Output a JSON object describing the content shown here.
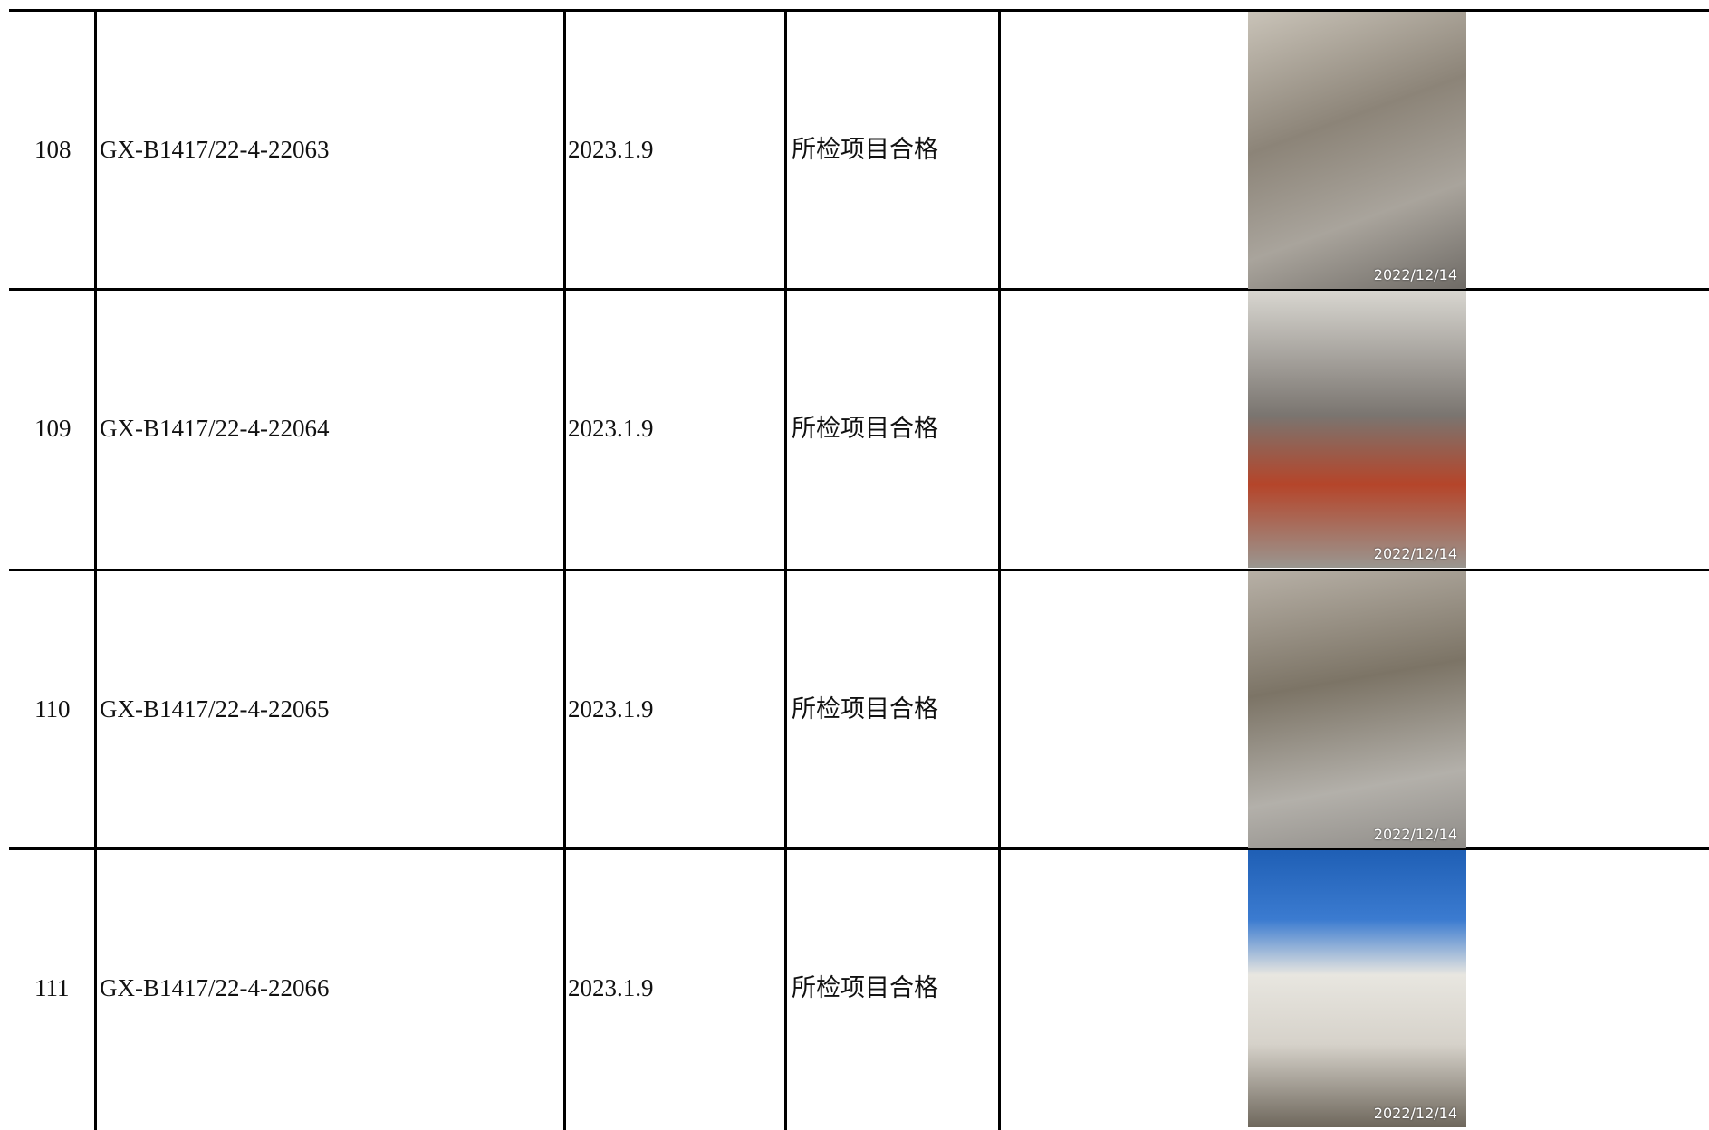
{
  "table": {
    "rows": [
      [
        "108",
        "GX-B1417/22-4-22063",
        "2023.1.9",
        "所检项目合格",
        "2022/12/14"
      ],
      [
        "109",
        "GX-B1417/22-4-22064",
        "2023.1.9",
        "所检项目合格",
        "2022/12/14"
      ],
      [
        "110",
        "GX-B1417/22-4-22065",
        "2023.1.9",
        "所检项目合格",
        "2022/12/14"
      ],
      [
        "111",
        "GX-B1417/22-4-22066",
        "2023.1.9",
        "所检项目合格",
        "2022/12/14"
      ]
    ]
  }
}
